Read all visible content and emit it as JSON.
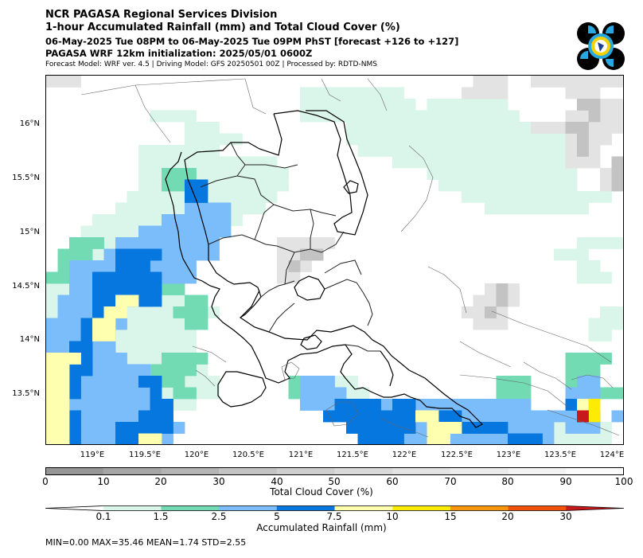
{
  "header": {
    "title_line1": "NCR PAGASA Regional Services Division",
    "title_line2": "1-hour Accumulated Rainfall (mm) and Total Cloud Cover (%)",
    "valid_time": "06-May-2025 Tue 08PM to 06-May-2025 Tue 09PM PhST [forecast +126 to +127]",
    "initialization": "PAGASA WRF 12km initialization: 2025/05/01 0600Z",
    "model_info": "Forecast Model: WRF ver. 4.5 | Driving Model: GFS 20250501 00Z | Processed by: RDTD-NMS"
  },
  "map": {
    "lat_labels": [
      "16°N",
      "15.5°N",
      "15°N",
      "14.5°N",
      "14°N",
      "13.5°N"
    ],
    "lon_labels": [
      "119°E",
      "119.5°E",
      "120°E",
      "120.5°E",
      "121°E",
      "121.5°E",
      "122°E",
      "122.5°E",
      "123°E",
      "123.5°E",
      "124°E"
    ]
  },
  "cloud_colorbar": {
    "label": "Total Cloud Cover (%)",
    "ticks": [
      "0",
      "10",
      "20",
      "30",
      "40",
      "50",
      "60",
      "70",
      "80",
      "90",
      "100"
    ],
    "colors": [
      "#969696",
      "#a5a5a5",
      "#b4b4b4",
      "#c3c3c3",
      "#cfcfcf",
      "#dadada",
      "#e3e3e3",
      "#ebebeb",
      "#f3f3f3",
      "#fafafa"
    ]
  },
  "rain_colorbar": {
    "label": "Accumulated Rainfall (mm)",
    "ticks": [
      "0.1",
      "1.5",
      "2.5",
      "5",
      "7.5",
      "10",
      "15",
      "20",
      "30"
    ],
    "colors": [
      "#ffffff",
      "#daf5ea",
      "#72dbb4",
      "#7bbcfb",
      "#0777e0",
      "#ffffb0",
      "#fcec05",
      "#f6960d",
      "#f0520c",
      "#c9181c"
    ]
  },
  "stats": {
    "text": "MIN=0.00   MAX=35.46   MEAN=1.74   STD=2.55"
  },
  "chart_data": {
    "type": "heatmap",
    "variable": "1-hour accumulated rainfall (mm) and total cloud cover (%)",
    "lon_range": [
      118.45,
      124.05
    ],
    "lat_range": [
      13.05,
      16.48
    ],
    "rainfall_stats": {
      "min": 0.0,
      "max": 35.46,
      "mean": 1.74,
      "std": 2.55
    },
    "rainfall_levels": [
      0.1,
      1.5,
      2.5,
      5,
      7.5,
      10,
      15,
      20,
      30
    ],
    "cloud_levels": [
      0,
      10,
      20,
      30,
      40,
      50,
      60,
      70,
      80,
      90,
      100
    ]
  }
}
